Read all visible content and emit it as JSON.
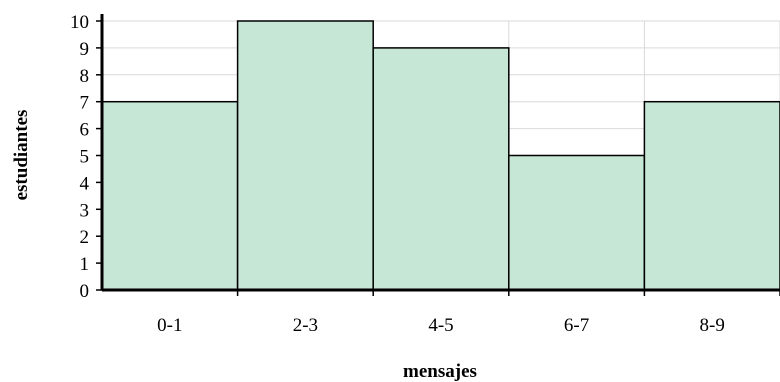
{
  "chart_data": {
    "type": "bar",
    "categories": [
      "0-1",
      "2-3",
      "4-5",
      "6-7",
      "8-9"
    ],
    "values": [
      7,
      10,
      9,
      5,
      7
    ],
    "xlabel": "mensajes",
    "ylabel": "estudiantes",
    "ylim": [
      0,
      10
    ],
    "yticks": [
      0,
      1,
      2,
      3,
      4,
      5,
      6,
      7,
      8,
      9,
      10
    ],
    "grid": true,
    "bar_color": "#c6e6d6"
  }
}
